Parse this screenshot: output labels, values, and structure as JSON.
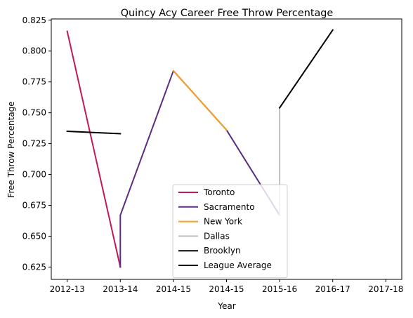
{
  "chart_data": {
    "type": "line",
    "title": "Quincy Acy Career Free Throw Percentage",
    "xlabel": "Year",
    "ylabel": "Free Throw Percentage",
    "x_ticks": [
      "2012-13",
      "2013-14",
      "2014-15",
      "2014-15",
      "2015-16",
      "2016-17",
      "2017-18"
    ],
    "y_ticks": [
      "0.625",
      "0.650",
      "0.675",
      "0.700",
      "0.725",
      "0.750",
      "0.775",
      "0.800",
      "0.825"
    ],
    "y_tick_values": [
      0.625,
      0.65,
      0.675,
      0.7,
      0.725,
      0.75,
      0.775,
      0.8,
      0.825
    ],
    "xlim": [
      -0.3,
      6.3
    ],
    "ylim": [
      0.615,
      0.826
    ],
    "grid": false,
    "legend_position": "lower center",
    "series": [
      {
        "name": "Toronto",
        "color": "#c2185b",
        "x": [
          0,
          1,
          1
        ],
        "y": [
          0.816,
          0.625,
          0.625
        ]
      },
      {
        "name": "Sacramento",
        "color": "#5c2d82",
        "x": [
          1,
          1,
          2,
          3,
          4,
          4
        ],
        "y": [
          0.625,
          0.667,
          0.784,
          0.736,
          0.667,
          0.667
        ]
      },
      {
        "name": "New York",
        "color": "#f5a023",
        "x": [
          2,
          3
        ],
        "y": [
          0.784,
          0.736
        ]
      },
      {
        "name": "Dallas",
        "color": "#c0c0c0",
        "x": [
          4,
          4
        ],
        "y": [
          0.667,
          0.754
        ]
      },
      {
        "name": "Brooklyn",
        "color": "#000000",
        "x": [
          4,
          5
        ],
        "y": [
          0.754,
          0.817
        ]
      },
      {
        "name": "League Average",
        "color": "#000000",
        "x": [
          0,
          1
        ],
        "y": [
          0.735,
          0.733
        ]
      }
    ]
  }
}
